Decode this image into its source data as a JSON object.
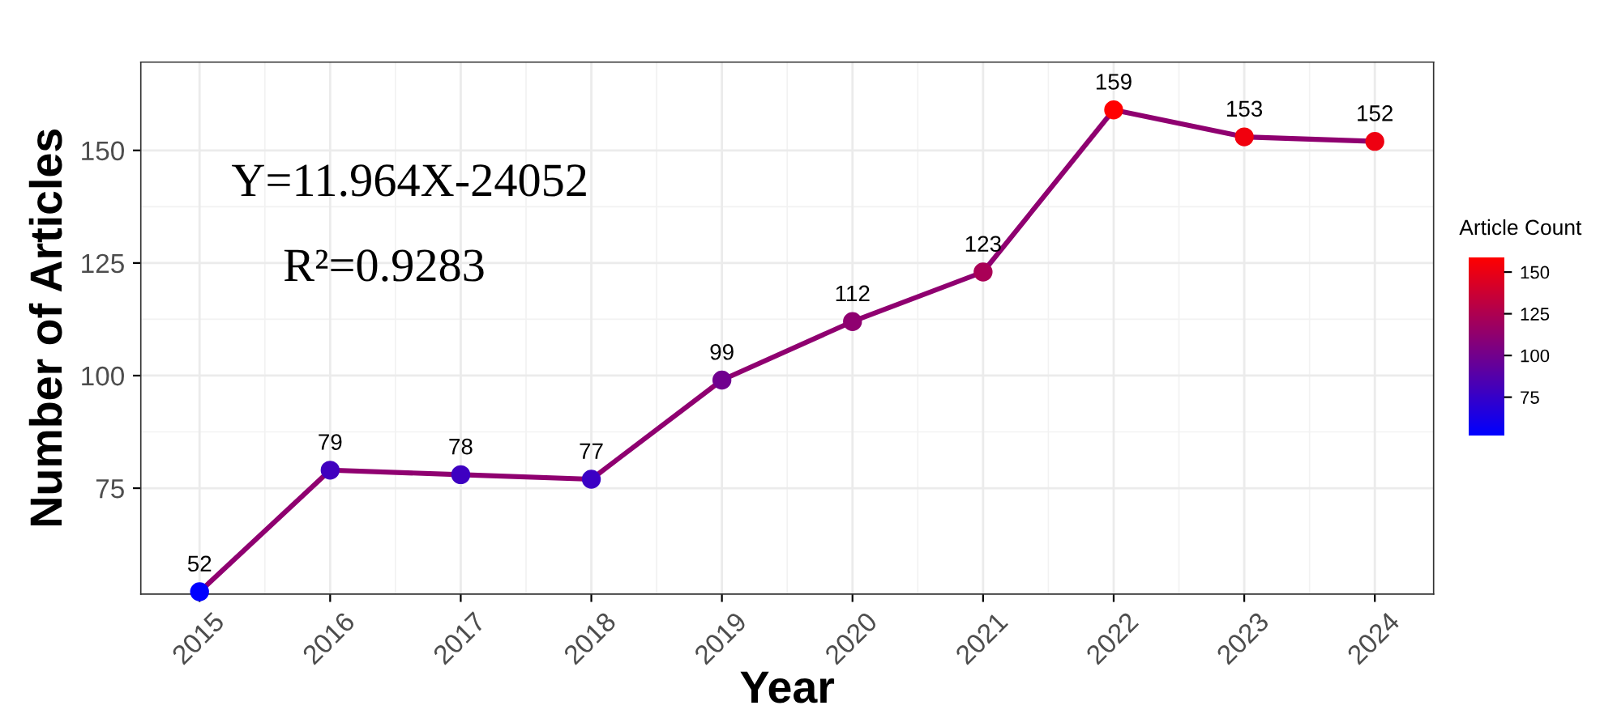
{
  "chart_data": {
    "type": "line",
    "xlabel": "Year",
    "ylabel": "Number of Articles",
    "clabel": "Article Count",
    "x": [
      2015,
      2016,
      2017,
      2018,
      2019,
      2020,
      2021,
      2022,
      2023,
      2024
    ],
    "values": [
      52,
      79,
      78,
      77,
      99,
      112,
      123,
      159,
      153,
      152
    ],
    "colors": [
      "#0000ff",
      "#4000bf",
      "#3e00c1",
      "#3b00c4",
      "#70008f",
      "#8f0070",
      "#a90056",
      "#ff0000",
      "#f1000e",
      "#ee0011"
    ],
    "clim": [
      52,
      159
    ],
    "cticks": [
      75,
      100,
      125,
      150
    ],
    "xlim": [
      2014.55,
      2024.45
    ],
    "xticks": [
      2015,
      2016,
      2017,
      2018,
      2019,
      2020,
      2021,
      2022,
      2023,
      2024
    ],
    "ylim": [
      51.5,
      169.6
    ],
    "yticks": [
      75,
      100,
      125,
      150
    ],
    "data_labels": true,
    "marker": "circle",
    "grid": true,
    "annotations": [
      "Y=11.964X-24052",
      "R²=0.9283"
    ]
  }
}
